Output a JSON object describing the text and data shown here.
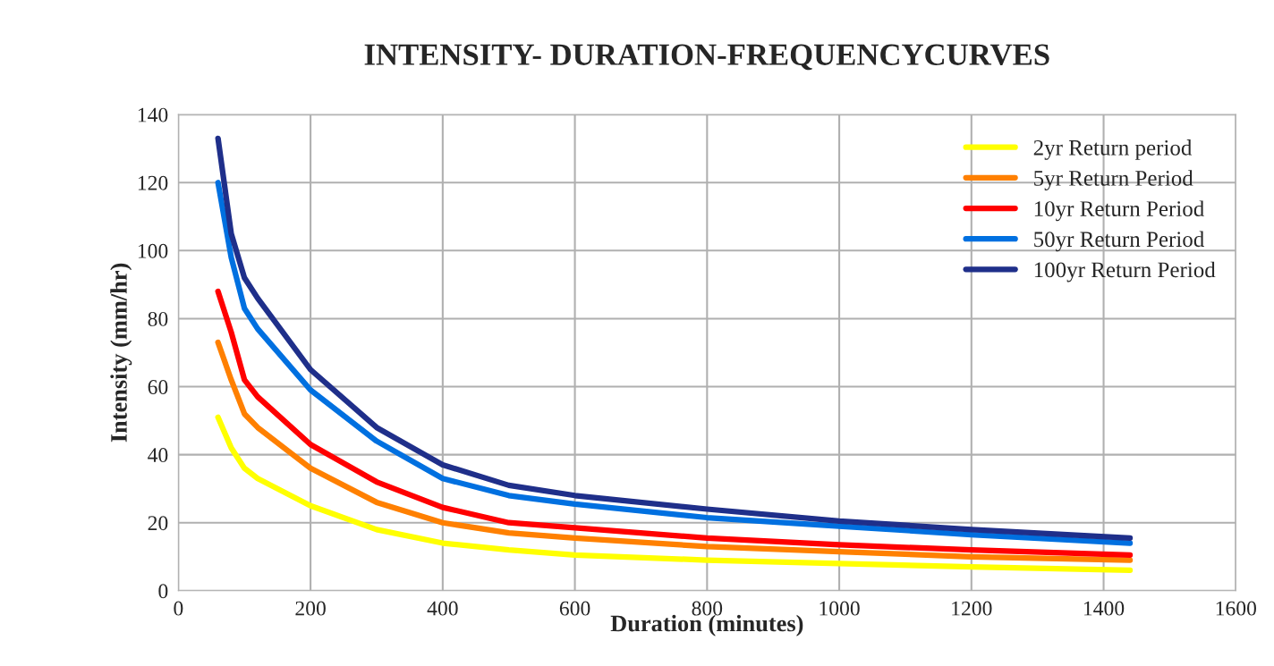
{
  "chart_data": {
    "type": "line",
    "title": "INTENSITY- DURATION-FREQUENCYCURVES",
    "xlabel": "Duration (minutes)",
    "ylabel": "Intensity (mm/hr)",
    "x": [
      60,
      80,
      100,
      120,
      200,
      300,
      400,
      500,
      600,
      800,
      1000,
      1200,
      1440
    ],
    "series": [
      {
        "name": "2yr Return period",
        "color": "#ffff00",
        "values": [
          51,
          42,
          36,
          33,
          25,
          18,
          14,
          12,
          10.5,
          9,
          8,
          7,
          6
        ]
      },
      {
        "name": "5yr Return Period",
        "color": "#ff8000",
        "values": [
          73,
          62,
          52,
          48,
          36,
          26,
          20,
          17,
          15.5,
          13,
          11.5,
          10,
          9
        ]
      },
      {
        "name": "10yr Return Period",
        "color": "#ff0000",
        "values": [
          88,
          76,
          62,
          57,
          43,
          32,
          24.5,
          20,
          18.5,
          15.5,
          13.5,
          12,
          10.5
        ]
      },
      {
        "name": "50yr Return Period",
        "color": "#0070e0",
        "values": [
          120,
          98,
          83,
          77,
          59,
          44,
          33,
          28,
          25.5,
          21.5,
          19,
          16.5,
          14
        ]
      },
      {
        "name": "100yr Return Period",
        "color": "#1f2f8a",
        "values": [
          133,
          105,
          92,
          86,
          65,
          48,
          37,
          31,
          28,
          24,
          20.5,
          18,
          15.5
        ]
      }
    ],
    "xlim": [
      0,
      1600
    ],
    "xticks": [
      0,
      200,
      400,
      600,
      800,
      1000,
      1200,
      1400,
      1600
    ],
    "ylim": [
      0,
      140
    ],
    "yticks": [
      0,
      20,
      40,
      60,
      80,
      100,
      120,
      140
    ],
    "grid": true,
    "legend": "top right",
    "marker": "none",
    "line_style": "solid"
  }
}
